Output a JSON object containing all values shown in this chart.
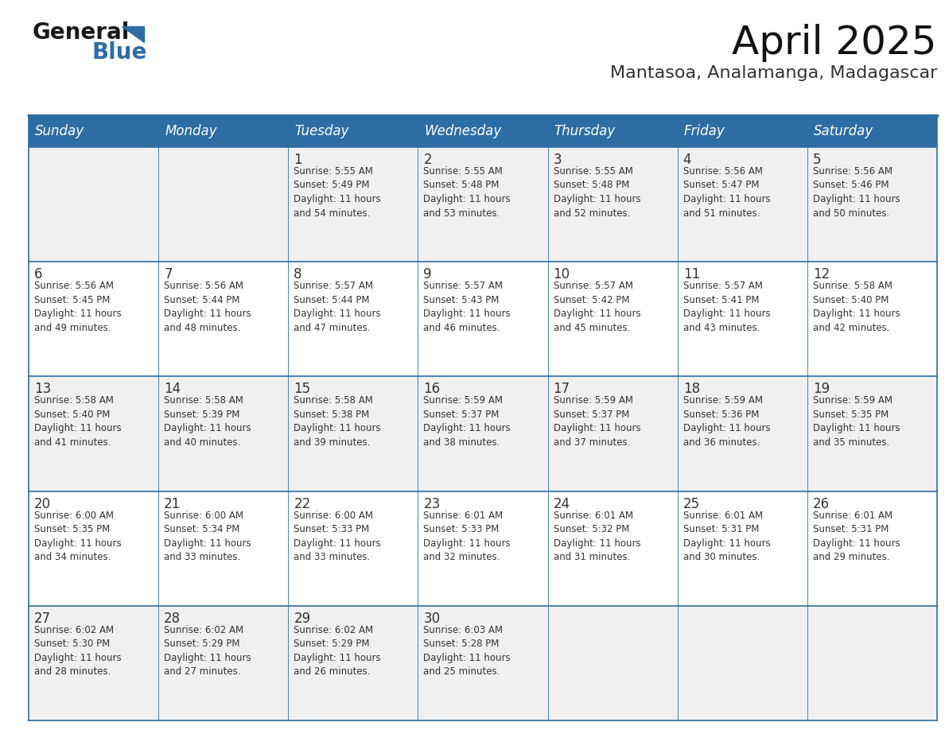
{
  "title": "April 2025",
  "subtitle": "Mantasoa, Analamanga, Madagascar",
  "header_bg": "#2E6DA4",
  "header_text": "#FFFFFF",
  "row_bg_even": "#F0F0F0",
  "row_bg_odd": "#FFFFFF",
  "cell_border": "#2E6DA4",
  "day_number_color": "#333333",
  "text_color": "#333333",
  "days_of_week": [
    "Sunday",
    "Monday",
    "Tuesday",
    "Wednesday",
    "Thursday",
    "Friday",
    "Saturday"
  ],
  "weeks": [
    [
      {
        "day": "",
        "info": ""
      },
      {
        "day": "",
        "info": ""
      },
      {
        "day": "1",
        "info": "Sunrise: 5:55 AM\nSunset: 5:49 PM\nDaylight: 11 hours\nand 54 minutes."
      },
      {
        "day": "2",
        "info": "Sunrise: 5:55 AM\nSunset: 5:48 PM\nDaylight: 11 hours\nand 53 minutes."
      },
      {
        "day": "3",
        "info": "Sunrise: 5:55 AM\nSunset: 5:48 PM\nDaylight: 11 hours\nand 52 minutes."
      },
      {
        "day": "4",
        "info": "Sunrise: 5:56 AM\nSunset: 5:47 PM\nDaylight: 11 hours\nand 51 minutes."
      },
      {
        "day": "5",
        "info": "Sunrise: 5:56 AM\nSunset: 5:46 PM\nDaylight: 11 hours\nand 50 minutes."
      }
    ],
    [
      {
        "day": "6",
        "info": "Sunrise: 5:56 AM\nSunset: 5:45 PM\nDaylight: 11 hours\nand 49 minutes."
      },
      {
        "day": "7",
        "info": "Sunrise: 5:56 AM\nSunset: 5:44 PM\nDaylight: 11 hours\nand 48 minutes."
      },
      {
        "day": "8",
        "info": "Sunrise: 5:57 AM\nSunset: 5:44 PM\nDaylight: 11 hours\nand 47 minutes."
      },
      {
        "day": "9",
        "info": "Sunrise: 5:57 AM\nSunset: 5:43 PM\nDaylight: 11 hours\nand 46 minutes."
      },
      {
        "day": "10",
        "info": "Sunrise: 5:57 AM\nSunset: 5:42 PM\nDaylight: 11 hours\nand 45 minutes."
      },
      {
        "day": "11",
        "info": "Sunrise: 5:57 AM\nSunset: 5:41 PM\nDaylight: 11 hours\nand 43 minutes."
      },
      {
        "day": "12",
        "info": "Sunrise: 5:58 AM\nSunset: 5:40 PM\nDaylight: 11 hours\nand 42 minutes."
      }
    ],
    [
      {
        "day": "13",
        "info": "Sunrise: 5:58 AM\nSunset: 5:40 PM\nDaylight: 11 hours\nand 41 minutes."
      },
      {
        "day": "14",
        "info": "Sunrise: 5:58 AM\nSunset: 5:39 PM\nDaylight: 11 hours\nand 40 minutes."
      },
      {
        "day": "15",
        "info": "Sunrise: 5:58 AM\nSunset: 5:38 PM\nDaylight: 11 hours\nand 39 minutes."
      },
      {
        "day": "16",
        "info": "Sunrise: 5:59 AM\nSunset: 5:37 PM\nDaylight: 11 hours\nand 38 minutes."
      },
      {
        "day": "17",
        "info": "Sunrise: 5:59 AM\nSunset: 5:37 PM\nDaylight: 11 hours\nand 37 minutes."
      },
      {
        "day": "18",
        "info": "Sunrise: 5:59 AM\nSunset: 5:36 PM\nDaylight: 11 hours\nand 36 minutes."
      },
      {
        "day": "19",
        "info": "Sunrise: 5:59 AM\nSunset: 5:35 PM\nDaylight: 11 hours\nand 35 minutes."
      }
    ],
    [
      {
        "day": "20",
        "info": "Sunrise: 6:00 AM\nSunset: 5:35 PM\nDaylight: 11 hours\nand 34 minutes."
      },
      {
        "day": "21",
        "info": "Sunrise: 6:00 AM\nSunset: 5:34 PM\nDaylight: 11 hours\nand 33 minutes."
      },
      {
        "day": "22",
        "info": "Sunrise: 6:00 AM\nSunset: 5:33 PM\nDaylight: 11 hours\nand 33 minutes."
      },
      {
        "day": "23",
        "info": "Sunrise: 6:01 AM\nSunset: 5:33 PM\nDaylight: 11 hours\nand 32 minutes."
      },
      {
        "day": "24",
        "info": "Sunrise: 6:01 AM\nSunset: 5:32 PM\nDaylight: 11 hours\nand 31 minutes."
      },
      {
        "day": "25",
        "info": "Sunrise: 6:01 AM\nSunset: 5:31 PM\nDaylight: 11 hours\nand 30 minutes."
      },
      {
        "day": "26",
        "info": "Sunrise: 6:01 AM\nSunset: 5:31 PM\nDaylight: 11 hours\nand 29 minutes."
      }
    ],
    [
      {
        "day": "27",
        "info": "Sunrise: 6:02 AM\nSunset: 5:30 PM\nDaylight: 11 hours\nand 28 minutes."
      },
      {
        "day": "28",
        "info": "Sunrise: 6:02 AM\nSunset: 5:29 PM\nDaylight: 11 hours\nand 27 minutes."
      },
      {
        "day": "29",
        "info": "Sunrise: 6:02 AM\nSunset: 5:29 PM\nDaylight: 11 hours\nand 26 minutes."
      },
      {
        "day": "30",
        "info": "Sunrise: 6:03 AM\nSunset: 5:28 PM\nDaylight: 11 hours\nand 25 minutes."
      },
      {
        "day": "",
        "info": ""
      },
      {
        "day": "",
        "info": ""
      },
      {
        "day": "",
        "info": ""
      }
    ]
  ],
  "logo_text_general": "General",
  "logo_text_blue": "Blue",
  "logo_color_general": "#1a1a1a",
  "logo_color_blue": "#2E6DA4",
  "logo_triangle_color": "#2E6DA4",
  "title_fontsize": 36,
  "subtitle_fontsize": 16,
  "header_fontsize": 12,
  "day_num_fontsize": 12,
  "info_fontsize": 8.5
}
